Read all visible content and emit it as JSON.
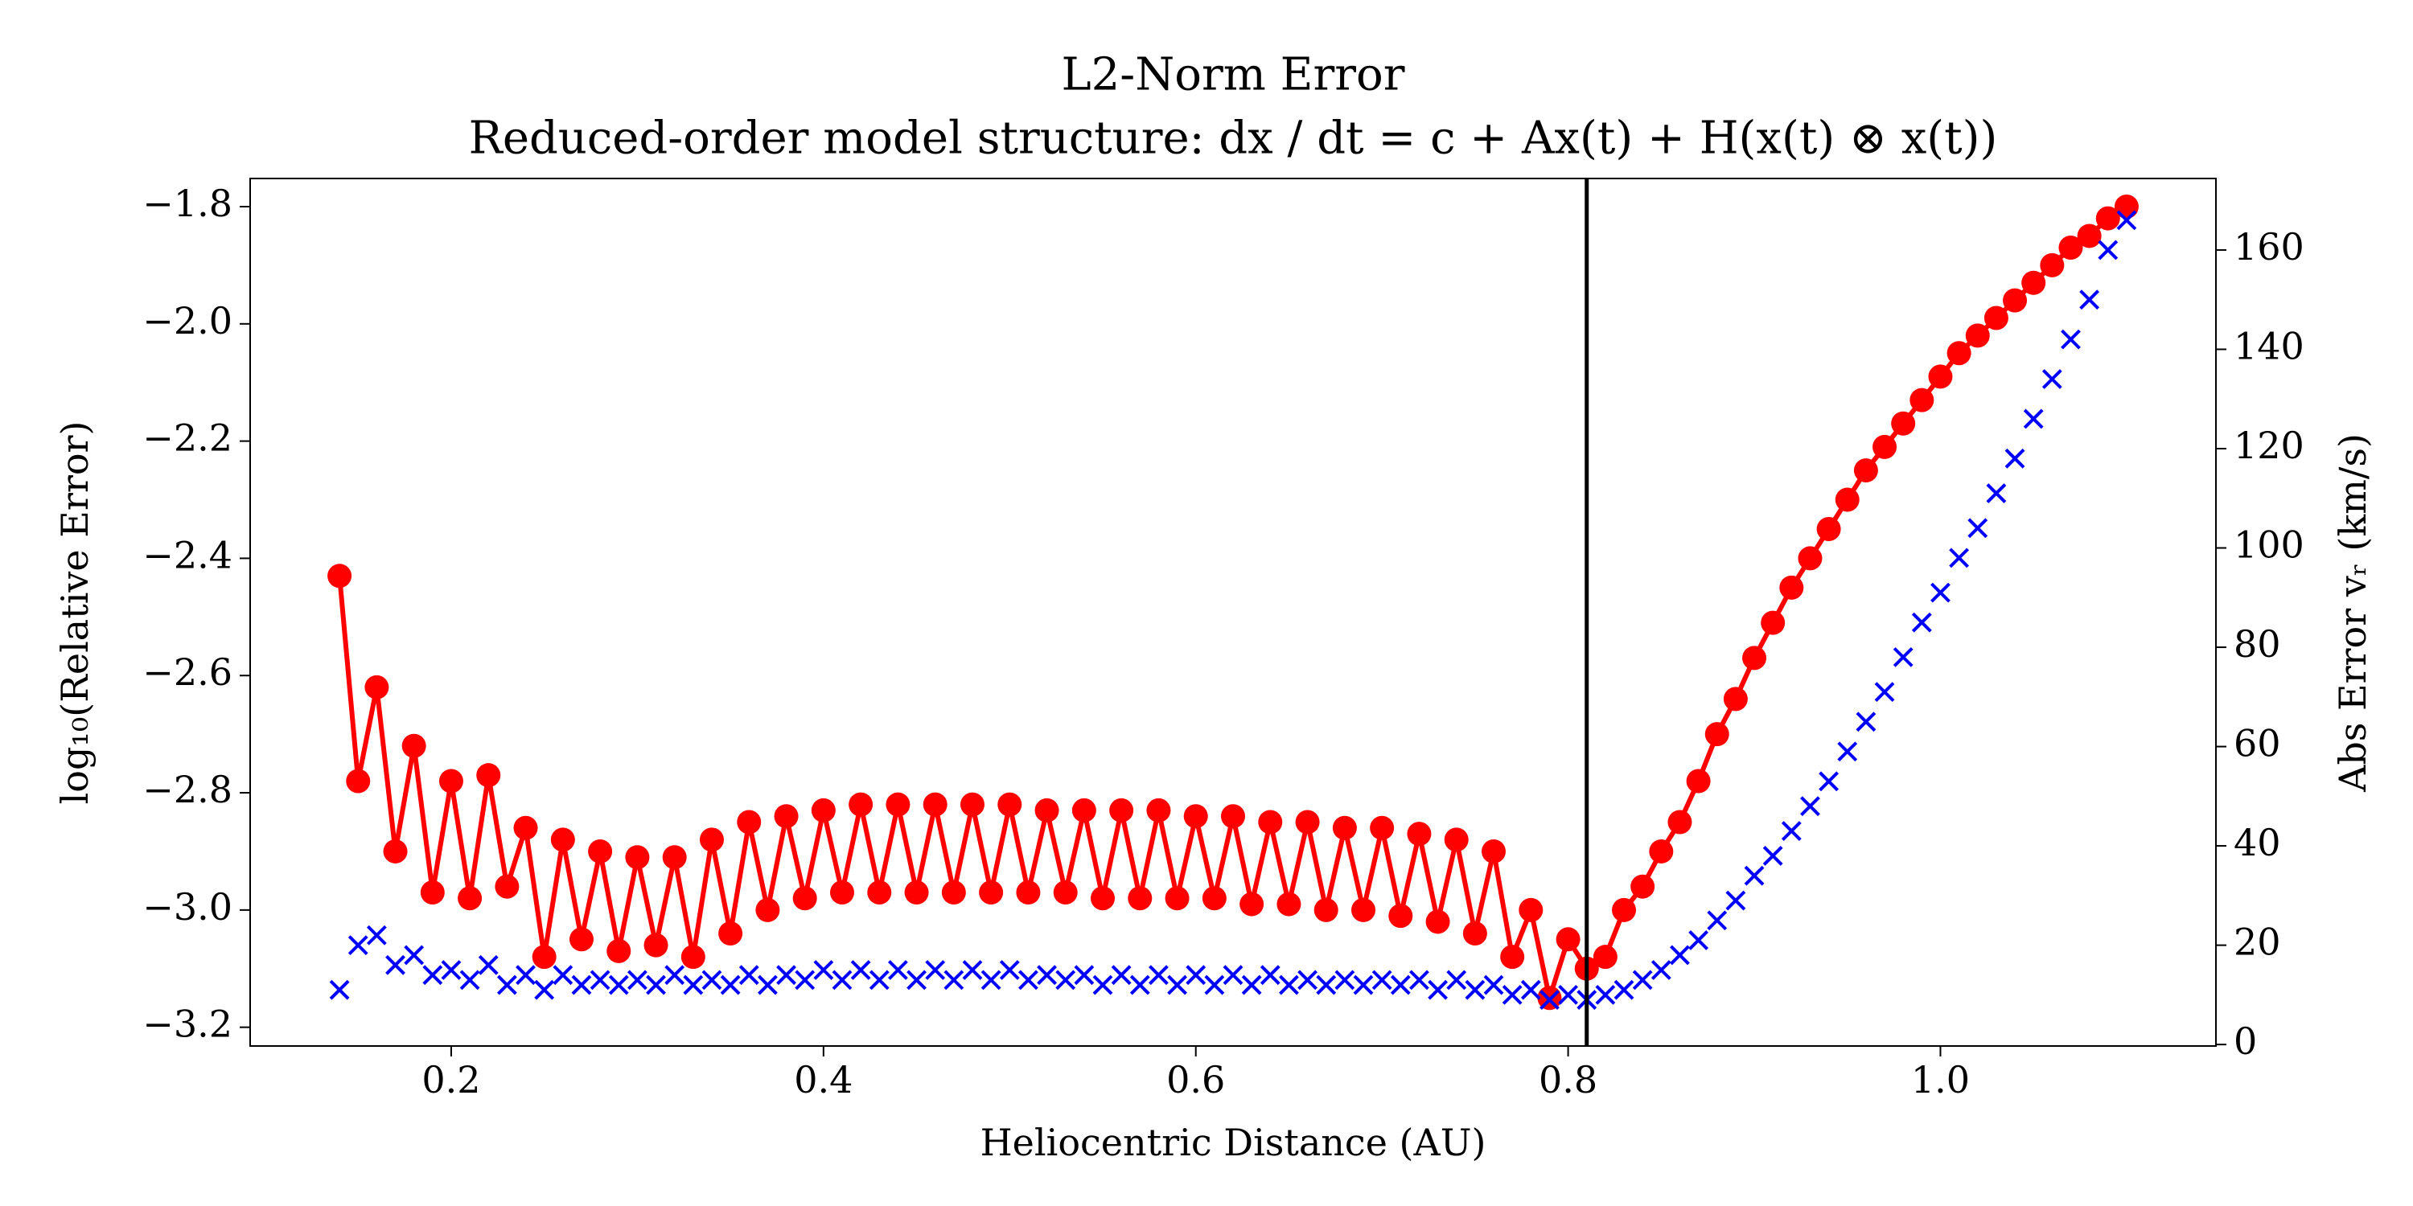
{
  "chart_data": {
    "type": "line",
    "title": "L2-Norm Error",
    "subtitle": "Reduced-order model structure: dx / dt = c + Ax(t) + H(x(t) ⊗ x(t))",
    "x_label": "Heliocentric Distance (AU)",
    "y_label": "log₁₀(Relative Error)",
    "y2_label": "Abs Error vᵣ (km/s)",
    "x": [
      0.14,
      0.15,
      0.16,
      0.17,
      0.18,
      0.19,
      0.2,
      0.21,
      0.22,
      0.23,
      0.24,
      0.25,
      0.26,
      0.27,
      0.28,
      0.29,
      0.3,
      0.31,
      0.32,
      0.33,
      0.34,
      0.35,
      0.36,
      0.37,
      0.38,
      0.39,
      0.4,
      0.41,
      0.42,
      0.43,
      0.44,
      0.45,
      0.46,
      0.47,
      0.48,
      0.49,
      0.5,
      0.51,
      0.52,
      0.53,
      0.54,
      0.55,
      0.56,
      0.57,
      0.58,
      0.59,
      0.6,
      0.61,
      0.62,
      0.63,
      0.64,
      0.65,
      0.66,
      0.67,
      0.68,
      0.69,
      0.7,
      0.71,
      0.72,
      0.73,
      0.74,
      0.75,
      0.76,
      0.77,
      0.78,
      0.79,
      0.8,
      0.81,
      0.82,
      0.83,
      0.84,
      0.85,
      0.86,
      0.87,
      0.88,
      0.89,
      0.9,
      0.91,
      0.92,
      0.93,
      0.94,
      0.95,
      0.96,
      0.97,
      0.98,
      0.99,
      1.0,
      1.01,
      1.02,
      1.03,
      1.04,
      1.05,
      1.06,
      1.07,
      1.08,
      1.09,
      1.1
    ],
    "series": [
      {
        "color": "#ff0000",
        "marker": "o",
        "values": [
          -2.43,
          -2.78,
          -2.62,
          -2.9,
          -2.72,
          -2.97,
          -2.78,
          -2.98,
          -2.77,
          -2.96,
          -2.86,
          -3.08,
          -2.88,
          -3.05,
          -2.9,
          -3.07,
          -2.91,
          -3.06,
          -2.91,
          -3.08,
          -2.88,
          -3.04,
          -2.85,
          -3.0,
          -2.84,
          -2.98,
          -2.83,
          -2.97,
          -2.82,
          -2.97,
          -2.82,
          -2.97,
          -2.82,
          -2.97,
          -2.82,
          -2.97,
          -2.82,
          -2.97,
          -2.83,
          -2.97,
          -2.83,
          -2.98,
          -2.83,
          -2.98,
          -2.83,
          -2.98,
          -2.84,
          -2.98,
          -2.84,
          -2.99,
          -2.85,
          -2.99,
          -2.85,
          -3.0,
          -2.86,
          -3.0,
          -2.86,
          -3.01,
          -2.87,
          -3.02,
          -2.88,
          -3.04,
          -2.9,
          -3.08,
          -3.0,
          -3.15,
          -3.05,
          -3.1,
          -3.08,
          -3.0,
          -2.96,
          -2.9,
          -2.85,
          -2.78,
          -2.7,
          -2.64,
          -2.57,
          -2.51,
          -2.45,
          -2.4,
          -2.35,
          -2.3,
          -2.25,
          -2.21,
          -2.17,
          -2.13,
          -2.09,
          -2.05,
          -2.02,
          -1.99,
          -1.96,
          -1.93,
          -1.9,
          -1.87,
          -1.85,
          -1.82,
          -1.8
        ]
      },
      {
        "color": "#0000ff",
        "marker": "x",
        "axis": "y2",
        "values": [
          11,
          20,
          22,
          16,
          18,
          14,
          15,
          13,
          16,
          12,
          14,
          11,
          14,
          12,
          13,
          12,
          13,
          12,
          14,
          12,
          13,
          12,
          14,
          12,
          14,
          13,
          15,
          13,
          15,
          13,
          15,
          13,
          15,
          13,
          15,
          13,
          15,
          13,
          14,
          13,
          14,
          12,
          14,
          12,
          14,
          12,
          14,
          12,
          14,
          12,
          14,
          12,
          13,
          12,
          13,
          12,
          13,
          12,
          13,
          11,
          13,
          11,
          12,
          10,
          11,
          9,
          10,
          9,
          10,
          11,
          13,
          15,
          18,
          21,
          25,
          29,
          34,
          38,
          43,
          48,
          53,
          59,
          65,
          71,
          78,
          85,
          91,
          98,
          104,
          111,
          118,
          126,
          134,
          142,
          150,
          160,
          166
        ]
      }
    ],
    "vline": 0.81,
    "xlim": [
      0.092,
      1.148
    ],
    "ylim": [
      -3.232,
      -1.752
    ],
    "y2lim": [
      -0.3,
      174.4
    ],
    "xticks": [
      0.2,
      0.4,
      0.6,
      0.8,
      {
        "value": 1,
        "label": "1.0"
      }
    ],
    "yticks": [
      {
        "value": -3.2,
        "label": "−3.2"
      },
      {
        "value": -3.0,
        "label": "−3.0"
      },
      {
        "value": -2.8,
        "label": "−2.8"
      },
      {
        "value": -2.6,
        "label": "−2.6"
      },
      {
        "value": -2.4,
        "label": "−2.4"
      },
      {
        "value": -2.2,
        "label": "−2.2"
      },
      {
        "value": -2.0,
        "label": "−2.0"
      },
      {
        "value": -1.8,
        "label": "−1.8"
      }
    ],
    "y2ticks": [
      0,
      20,
      40,
      60,
      80,
      100,
      120,
      140,
      160
    ],
    "y_label_color": "#ff0000",
    "y2_label_color": "#0000ff",
    "vline_color": "#000000"
  }
}
